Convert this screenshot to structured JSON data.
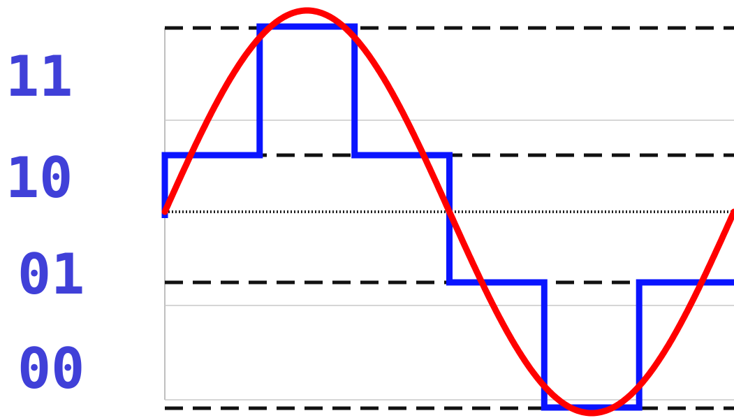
{
  "levels": [
    {
      "code": "11"
    },
    {
      "code": "10"
    },
    {
      "code": "01"
    },
    {
      "code": "00"
    }
  ],
  "colors": {
    "label": "#4040d8",
    "quantized": "#0a14ff",
    "analog": "#ff0000",
    "dashed": "#111111",
    "axis": "#222222",
    "grid": "#c8c8c8"
  },
  "signal": {
    "periods_shown": 1,
    "steps": [
      1,
      3,
      1,
      -1,
      -3,
      -1
    ]
  }
}
